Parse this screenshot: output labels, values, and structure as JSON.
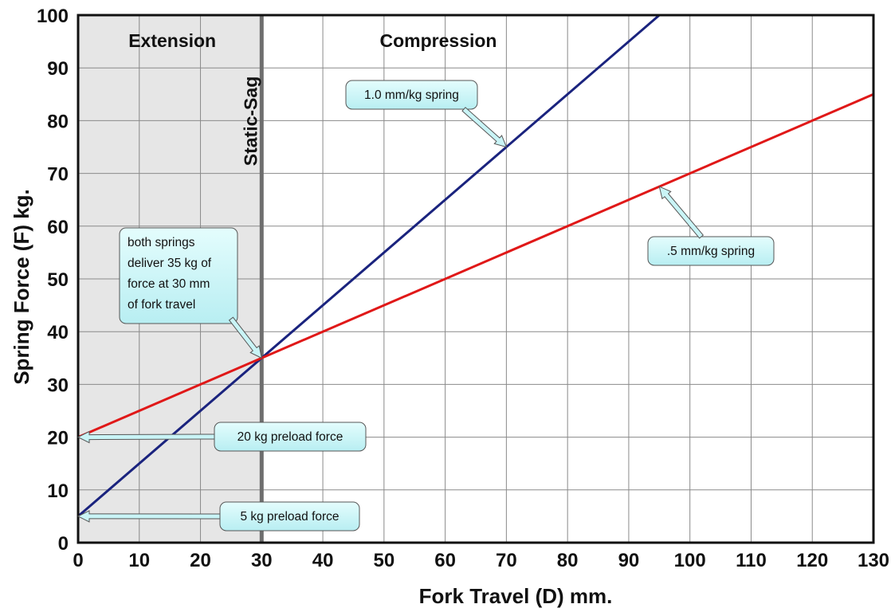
{
  "chart_data": {
    "type": "line",
    "xlabel": "Fork Travel (D) mm.",
    "ylabel": "Spring Force (F) kg.",
    "xlim": [
      0,
      130
    ],
    "ylim": [
      0,
      100
    ],
    "x_ticks": [
      0,
      10,
      20,
      30,
      40,
      50,
      60,
      70,
      80,
      90,
      100,
      110,
      120,
      130
    ],
    "y_ticks": [
      0,
      10,
      20,
      30,
      40,
      50,
      60,
      70,
      80,
      90,
      100
    ],
    "x_tick_labels": [
      "0",
      "10",
      "20",
      "30",
      "40",
      "50",
      "60",
      "70",
      "80",
      "90",
      "100",
      "110",
      "120",
      "130"
    ],
    "y_tick_labels": [
      "0",
      "10",
      "20",
      "30",
      "40",
      "50",
      "60",
      "70",
      "80",
      "90",
      "100"
    ],
    "grid": true,
    "series": [
      {
        "color": "#1a237e",
        "x": [
          0,
          95
        ],
        "y": [
          5,
          100
        ]
      },
      {
        "color": "#e01818",
        "x": [
          0,
          130
        ],
        "y": [
          20,
          85
        ]
      }
    ],
    "regions": [
      {
        "label": "Extension",
        "x_range": [
          0,
          30
        ],
        "fill": "#e6e6e6"
      },
      {
        "label": "Compression",
        "x_range": [
          30,
          130
        ]
      }
    ],
    "vertical_marker": {
      "x": 30,
      "label": "Static-Sag",
      "color": "#6e6e6e"
    },
    "annotations": [
      {
        "text": "1.0 mm/kg spring",
        "point": [
          70,
          75
        ]
      },
      {
        "text": ".5 mm/kg spring",
        "point": [
          95,
          67.5
        ]
      },
      {
        "text": "both springs\ndeliver 35 kg of\nforce at 30 mm\nof fork travel",
        "point": [
          30,
          35
        ]
      },
      {
        "text": "20 kg preload force",
        "point": [
          0,
          20
        ]
      },
      {
        "text": "5 kg preload force",
        "point": [
          0,
          5
        ]
      }
    ]
  }
}
